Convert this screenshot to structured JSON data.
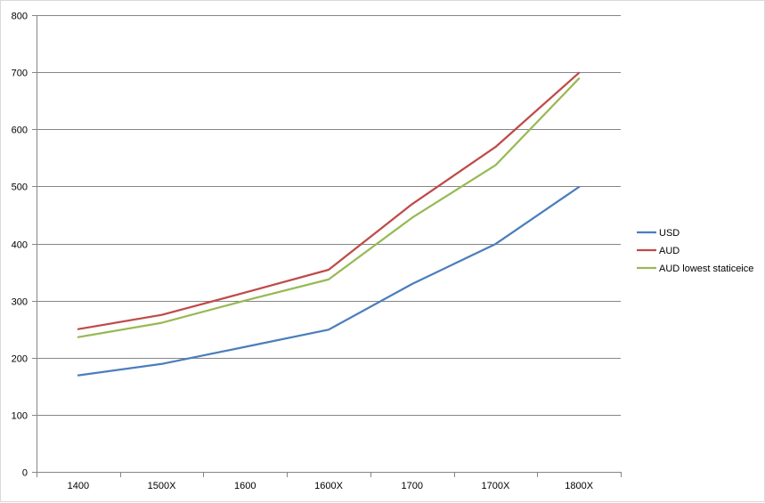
{
  "chart_data": {
    "type": "line",
    "title": "",
    "xlabel": "",
    "ylabel": "",
    "categories": [
      "1400",
      "1500X",
      "1600",
      "1600X",
      "1700",
      "1700X",
      "1800X"
    ],
    "ylim": [
      0,
      800
    ],
    "yticks": [
      0,
      100,
      200,
      300,
      400,
      500,
      600,
      700,
      800
    ],
    "grid": true,
    "legend_position": "right",
    "series": [
      {
        "name": "USD",
        "color": "#4a7ebb",
        "values": [
          169,
          189,
          219,
          249,
          329,
          399,
          499
        ]
      },
      {
        "name": "AUD",
        "color": "#be4b48",
        "values": [
          250,
          275,
          314,
          354,
          469,
          569,
          699
        ]
      },
      {
        "name": "AUD lowest staticeice",
        "color": "#98b954",
        "values": [
          236,
          261,
          300,
          337,
          445,
          537,
          689
        ]
      }
    ]
  }
}
